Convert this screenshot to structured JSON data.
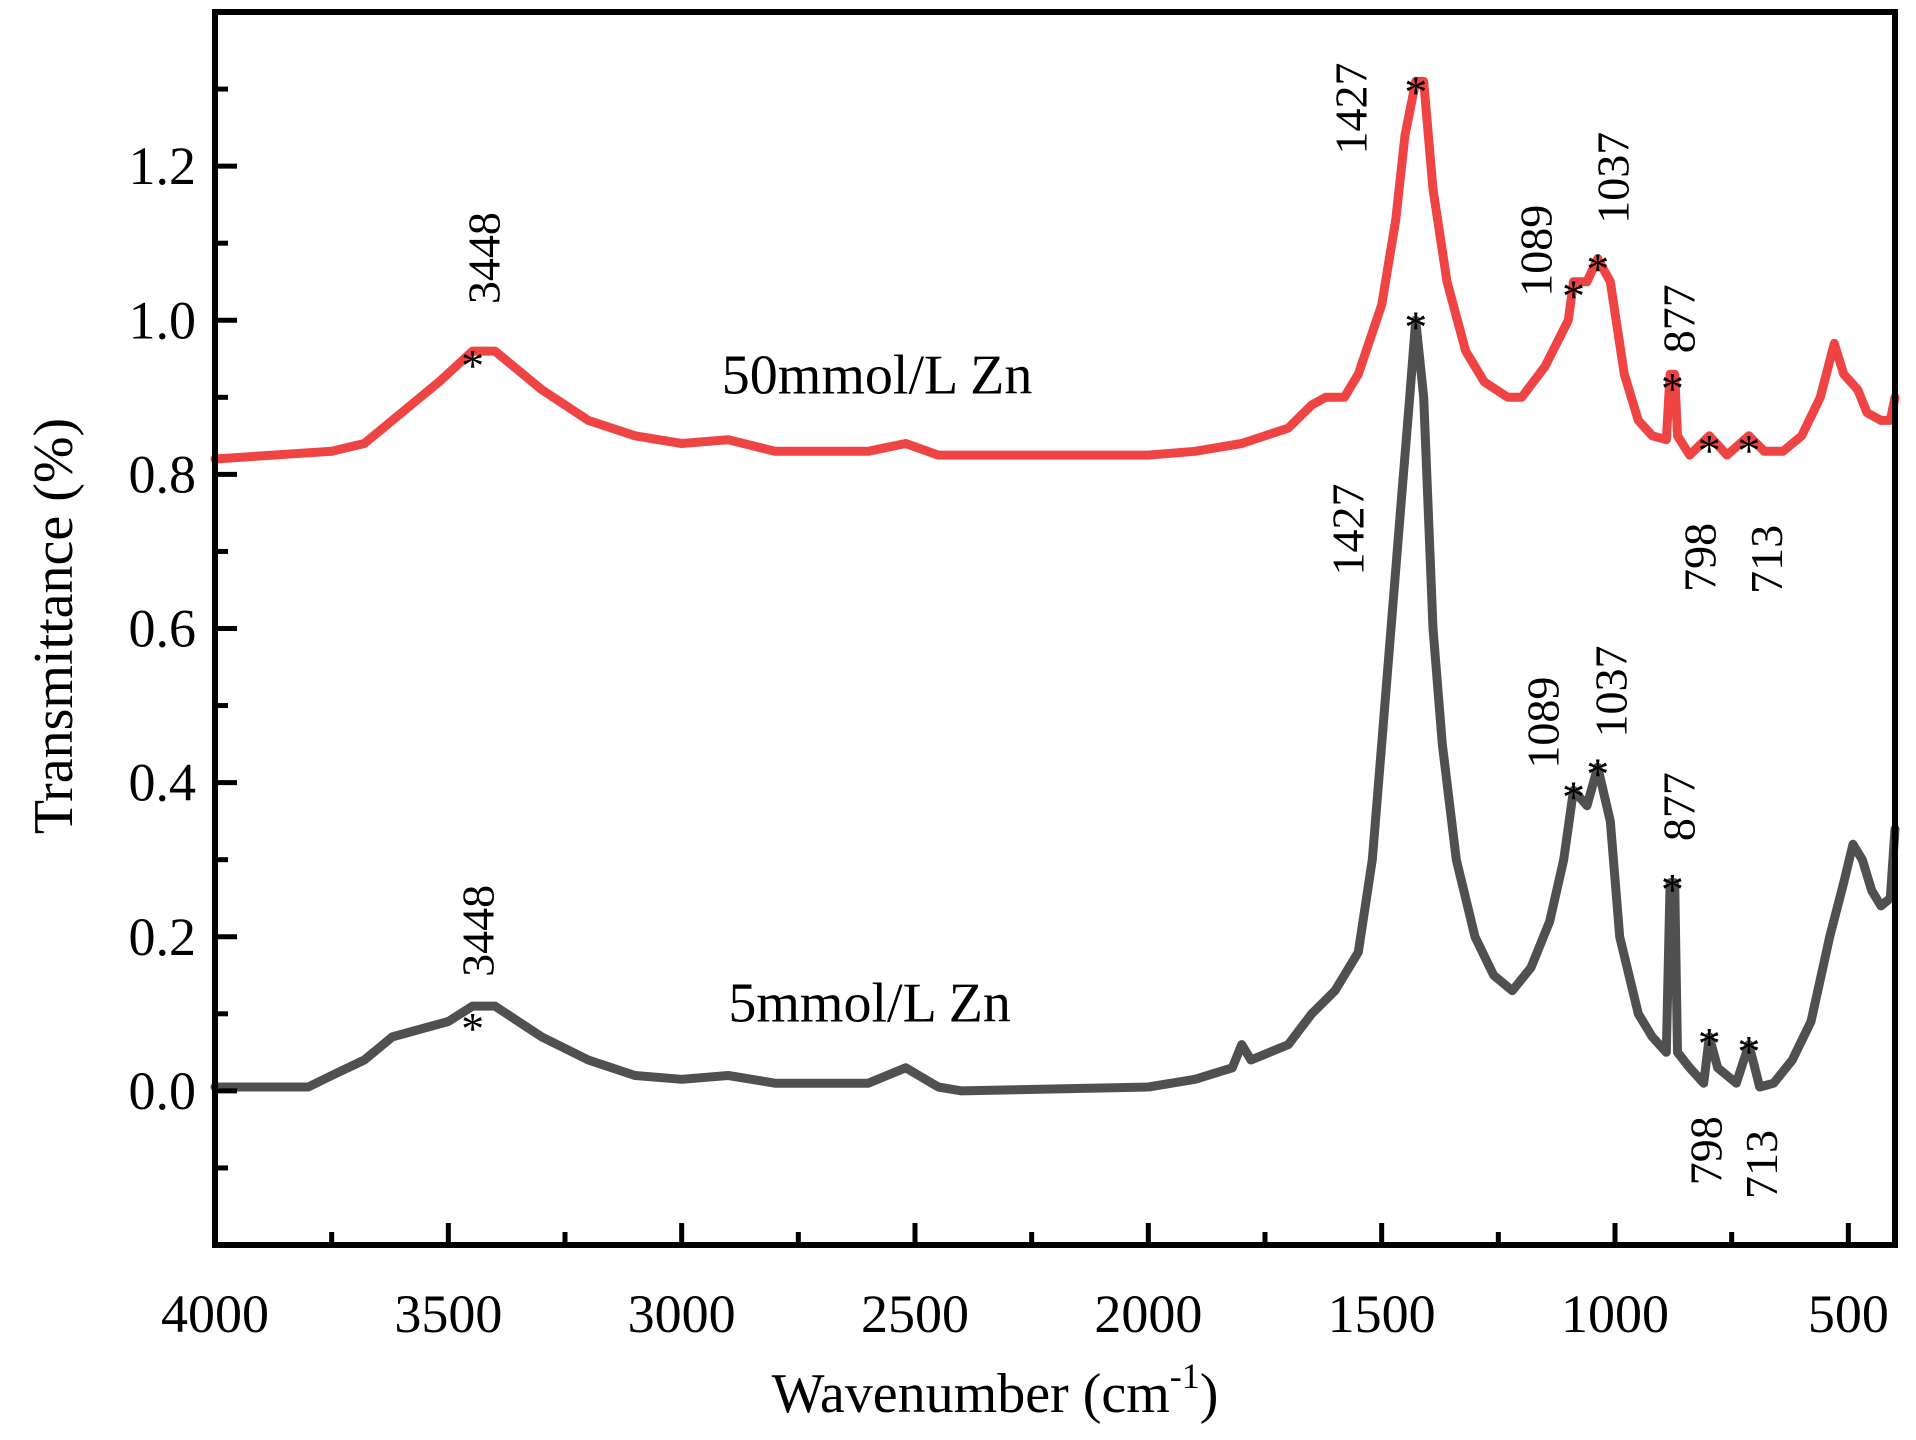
{
  "chart_data": {
    "type": "line",
    "title": "",
    "xlabel": "Wavenumber (cm",
    "xlabel_sup": "-1",
    "xlabel_end": ")",
    "ylabel": "Transmittance (%)",
    "xlim": [
      4000,
      400
    ],
    "ylim": [
      -0.2,
      1.4
    ],
    "x_reversed": true,
    "grid": false,
    "x_ticks": [
      4000,
      3500,
      3000,
      2500,
      2000,
      1500,
      1000,
      500
    ],
    "x_tick_labels": [
      "4000",
      "3500",
      "3000",
      "2500",
      "2000",
      "1500",
      "1000",
      "500"
    ],
    "x_minor_step": 250,
    "y_ticks": [
      0.0,
      0.2,
      0.4,
      0.6,
      0.8,
      1.0,
      1.2
    ],
    "y_tick_labels": [
      "0.0",
      "0.2",
      "0.4",
      "0.6",
      "0.8",
      "1.0",
      "1.2"
    ],
    "y_minor_step": 0.1,
    "series": [
      {
        "name": "50mmol/L Zn",
        "color": "#ef4444",
        "label_pos": {
          "x": 2914,
          "y": 0.905
        },
        "points": [
          [
            4000,
            0.82
          ],
          [
            3750,
            0.83
          ],
          [
            3680,
            0.84
          ],
          [
            3600,
            0.88
          ],
          [
            3520,
            0.92
          ],
          [
            3448,
            0.96
          ],
          [
            3400,
            0.96
          ],
          [
            3300,
            0.91
          ],
          [
            3200,
            0.87
          ],
          [
            3100,
            0.85
          ],
          [
            3000,
            0.84
          ],
          [
            2900,
            0.845
          ],
          [
            2800,
            0.83
          ],
          [
            2600,
            0.83
          ],
          [
            2520,
            0.84
          ],
          [
            2450,
            0.825
          ],
          [
            2000,
            0.825
          ],
          [
            1900,
            0.83
          ],
          [
            1800,
            0.84
          ],
          [
            1700,
            0.86
          ],
          [
            1650,
            0.89
          ],
          [
            1620,
            0.9
          ],
          [
            1580,
            0.9
          ],
          [
            1550,
            0.93
          ],
          [
            1500,
            1.02
          ],
          [
            1470,
            1.13
          ],
          [
            1450,
            1.24
          ],
          [
            1427,
            1.31
          ],
          [
            1410,
            1.31
          ],
          [
            1390,
            1.17
          ],
          [
            1360,
            1.05
          ],
          [
            1320,
            0.96
          ],
          [
            1280,
            0.92
          ],
          [
            1230,
            0.9
          ],
          [
            1200,
            0.9
          ],
          [
            1150,
            0.94
          ],
          [
            1100,
            1.0
          ],
          [
            1089,
            1.05
          ],
          [
            1060,
            1.05
          ],
          [
            1037,
            1.08
          ],
          [
            1010,
            1.05
          ],
          [
            980,
            0.93
          ],
          [
            950,
            0.87
          ],
          [
            920,
            0.85
          ],
          [
            890,
            0.845
          ],
          [
            882,
            0.93
          ],
          [
            872,
            0.93
          ],
          [
            866,
            0.85
          ],
          [
            840,
            0.825
          ],
          [
            798,
            0.85
          ],
          [
            760,
            0.825
          ],
          [
            713,
            0.85
          ],
          [
            680,
            0.83
          ],
          [
            640,
            0.83
          ],
          [
            600,
            0.85
          ],
          [
            560,
            0.9
          ],
          [
            530,
            0.97
          ],
          [
            510,
            0.93
          ],
          [
            480,
            0.91
          ],
          [
            460,
            0.88
          ],
          [
            430,
            0.87
          ],
          [
            410,
            0.87
          ],
          [
            400,
            0.9
          ]
        ],
        "peaks": [
          {
            "wavenumber": 3448,
            "y": 0.96,
            "label": "3448"
          },
          {
            "wavenumber": 1427,
            "y": 1.315,
            "label": "1427"
          },
          {
            "wavenumber": 1089,
            "y": 1.05,
            "label": "1089"
          },
          {
            "wavenumber": 1037,
            "y": 1.085,
            "label": "1037"
          },
          {
            "wavenumber": 877,
            "y": 0.93,
            "label": "877"
          },
          {
            "wavenumber": 798,
            "y": 0.85,
            "label": "798"
          },
          {
            "wavenumber": 713,
            "y": 0.85,
            "label": "713"
          }
        ]
      },
      {
        "name": "5mmol/L Zn",
        "color": "#505050",
        "label_pos": {
          "x": 2900,
          "y": 0.09
        },
        "points": [
          [
            4000,
            0.005
          ],
          [
            3800,
            0.005
          ],
          [
            3750,
            0.02
          ],
          [
            3680,
            0.04
          ],
          [
            3620,
            0.07
          ],
          [
            3500,
            0.09
          ],
          [
            3448,
            0.11
          ],
          [
            3400,
            0.11
          ],
          [
            3300,
            0.07
          ],
          [
            3200,
            0.04
          ],
          [
            3100,
            0.02
          ],
          [
            3000,
            0.015
          ],
          [
            2900,
            0.02
          ],
          [
            2800,
            0.01
          ],
          [
            2600,
            0.01
          ],
          [
            2520,
            0.03
          ],
          [
            2450,
            0.005
          ],
          [
            2400,
            0.0
          ],
          [
            2000,
            0.005
          ],
          [
            1900,
            0.015
          ],
          [
            1820,
            0.03
          ],
          [
            1800,
            0.06
          ],
          [
            1780,
            0.04
          ],
          [
            1700,
            0.06
          ],
          [
            1650,
            0.1
          ],
          [
            1600,
            0.13
          ],
          [
            1550,
            0.18
          ],
          [
            1520,
            0.3
          ],
          [
            1500,
            0.45
          ],
          [
            1480,
            0.6
          ],
          [
            1460,
            0.75
          ],
          [
            1440,
            0.9
          ],
          [
            1427,
            1.0
          ],
          [
            1410,
            0.9
          ],
          [
            1390,
            0.6
          ],
          [
            1370,
            0.45
          ],
          [
            1340,
            0.3
          ],
          [
            1300,
            0.2
          ],
          [
            1260,
            0.15
          ],
          [
            1220,
            0.13
          ],
          [
            1180,
            0.16
          ],
          [
            1140,
            0.22
          ],
          [
            1110,
            0.3
          ],
          [
            1089,
            0.39
          ],
          [
            1060,
            0.37
          ],
          [
            1037,
            0.42
          ],
          [
            1010,
            0.35
          ],
          [
            990,
            0.2
          ],
          [
            950,
            0.1
          ],
          [
            920,
            0.07
          ],
          [
            890,
            0.05
          ],
          [
            882,
            0.27
          ],
          [
            872,
            0.27
          ],
          [
            866,
            0.05
          ],
          [
            840,
            0.03
          ],
          [
            810,
            0.01
          ],
          [
            798,
            0.07
          ],
          [
            780,
            0.03
          ],
          [
            740,
            0.01
          ],
          [
            713,
            0.06
          ],
          [
            690,
            0.005
          ],
          [
            660,
            0.01
          ],
          [
            620,
            0.04
          ],
          [
            580,
            0.09
          ],
          [
            540,
            0.2
          ],
          [
            510,
            0.27
          ],
          [
            490,
            0.32
          ],
          [
            470,
            0.3
          ],
          [
            450,
            0.26
          ],
          [
            430,
            0.24
          ],
          [
            410,
            0.25
          ],
          [
            400,
            0.34
          ]
        ],
        "peaks": [
          {
            "wavenumber": 3448,
            "y": 0.1,
            "label": "3448"
          },
          {
            "wavenumber": 1427,
            "y": 1.01,
            "label": "1427"
          },
          {
            "wavenumber": 1089,
            "y": 0.4,
            "label": "1089"
          },
          {
            "wavenumber": 1037,
            "y": 0.43,
            "label": "1037"
          },
          {
            "wavenumber": 877,
            "y": 0.28,
            "label": "877"
          },
          {
            "wavenumber": 798,
            "y": 0.08,
            "label": "798"
          },
          {
            "wavenumber": 713,
            "y": 0.07,
            "label": "713"
          }
        ]
      }
    ],
    "peak_marker": "*"
  }
}
